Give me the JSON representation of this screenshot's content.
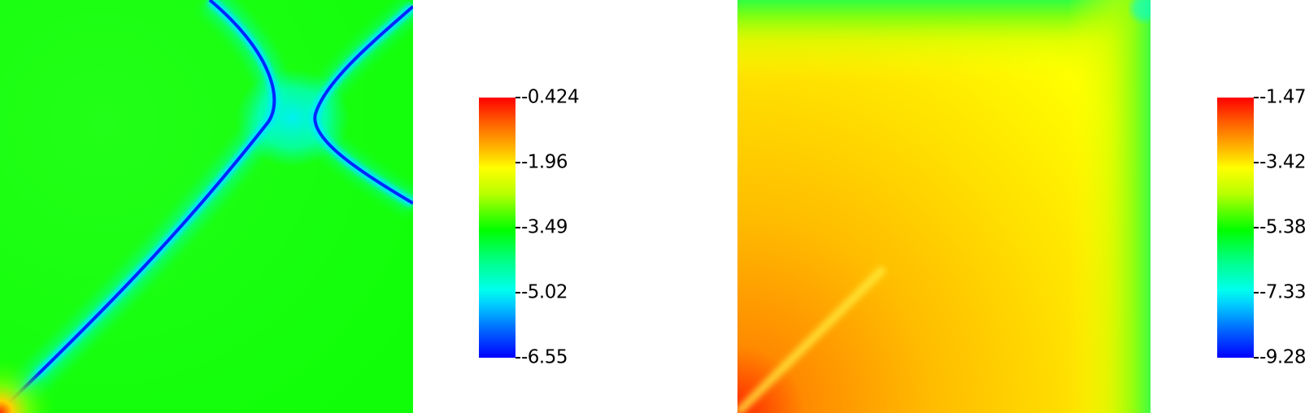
{
  "chart_data": [
    {
      "type": "heatmap",
      "title": "",
      "xlabel": "",
      "ylabel": "",
      "colormap": [
        "#0000ff",
        "#00ffff",
        "#00ff00",
        "#ffff00",
        "#ff0000"
      ],
      "colorbar": {
        "range": [
          -6.55,
          -0.424
        ],
        "tick_values": [
          -0.424,
          -1.96,
          -3.49,
          -5.02,
          -6.55
        ],
        "tick_labels": [
          "-0.424",
          "-1.96",
          "-3.49",
          "-5.02",
          "-6.55"
        ],
        "placement": "right"
      }
    },
    {
      "type": "heatmap",
      "title": "",
      "xlabel": "",
      "ylabel": "",
      "colormap": [
        "#0000ff",
        "#00ffff",
        "#00ff00",
        "#ffff00",
        "#ff0000"
      ],
      "colorbar": {
        "range": [
          -9.28,
          -1.47
        ],
        "tick_values": [
          -1.47,
          -3.42,
          -5.38,
          -7.33,
          -9.28
        ],
        "tick_labels": [
          "-1.47",
          "-3.42",
          "-5.38",
          "-7.33",
          "-9.28"
        ],
        "placement": "right"
      }
    }
  ]
}
